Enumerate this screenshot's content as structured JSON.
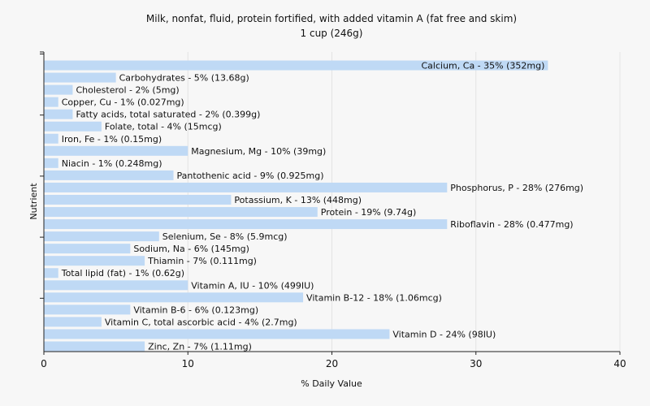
{
  "chart_data": {
    "type": "bar",
    "orientation": "horizontal",
    "title": "Milk, nonfat, fluid, protein fortified, with added vitamin A (fat free and skim)",
    "subtitle": "1 cup (246g)",
    "xlabel": "% Daily Value",
    "ylabel": "Nutrient",
    "xlim": [
      0,
      40
    ],
    "xticks": [
      "0",
      "10",
      "20",
      "30",
      "40"
    ],
    "grid": true,
    "colors": {
      "bar": "#bfd9f5",
      "background": "#f7f7f7"
    },
    "bars": [
      {
        "label": "Calcium, Ca - 35% (352mg)",
        "value": 35
      },
      {
        "label": "Carbohydrates - 5% (13.68g)",
        "value": 5
      },
      {
        "label": "Cholesterol - 2% (5mg)",
        "value": 2
      },
      {
        "label": "Copper, Cu - 1% (0.027mg)",
        "value": 1
      },
      {
        "label": "Fatty acids, total saturated - 2% (0.399g)",
        "value": 2
      },
      {
        "label": "Folate, total - 4% (15mcg)",
        "value": 4
      },
      {
        "label": "Iron, Fe - 1% (0.15mg)",
        "value": 1
      },
      {
        "label": "Magnesium, Mg - 10% (39mg)",
        "value": 10
      },
      {
        "label": "Niacin - 1% (0.248mg)",
        "value": 1
      },
      {
        "label": "Pantothenic acid - 9% (0.925mg)",
        "value": 9
      },
      {
        "label": "Phosphorus, P - 28% (276mg)",
        "value": 28
      },
      {
        "label": "Potassium, K - 13% (448mg)",
        "value": 13
      },
      {
        "label": "Protein - 19% (9.74g)",
        "value": 19
      },
      {
        "label": "Riboflavin - 28% (0.477mg)",
        "value": 28
      },
      {
        "label": "Selenium, Se - 8% (5.9mcg)",
        "value": 8
      },
      {
        "label": "Sodium, Na - 6% (145mg)",
        "value": 6
      },
      {
        "label": "Thiamin - 7% (0.111mg)",
        "value": 7
      },
      {
        "label": "Total lipid (fat) - 1% (0.62g)",
        "value": 1
      },
      {
        "label": "Vitamin A, IU - 10% (499IU)",
        "value": 10
      },
      {
        "label": "Vitamin B-12 - 18% (1.06mcg)",
        "value": 18
      },
      {
        "label": "Vitamin B-6 - 6% (0.123mg)",
        "value": 6
      },
      {
        "label": "Vitamin C, total ascorbic acid - 4% (2.7mg)",
        "value": 4
      },
      {
        "label": "Vitamin D - 24% (98IU)",
        "value": 24
      },
      {
        "label": "Zinc, Zn - 7% (1.11mg)",
        "value": 7
      }
    ]
  }
}
